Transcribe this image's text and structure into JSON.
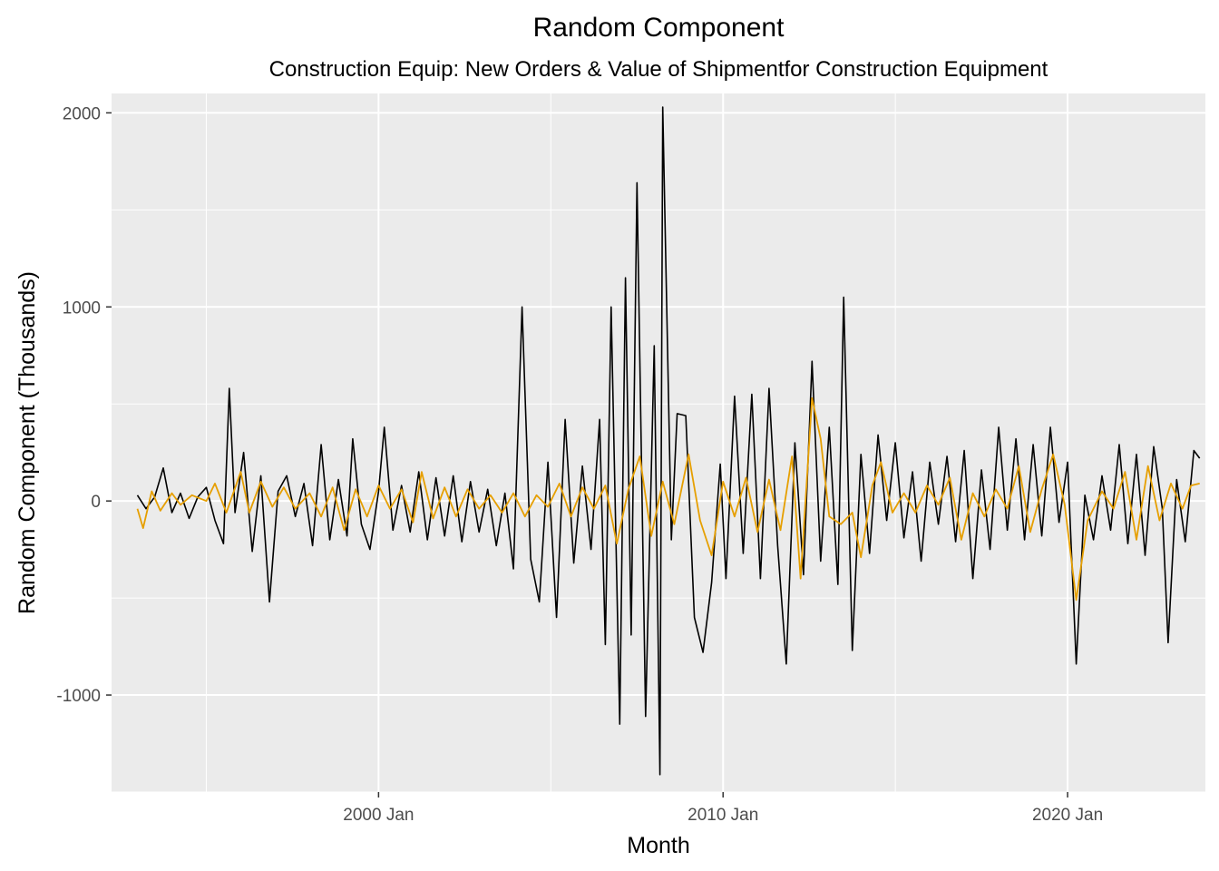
{
  "chart_data": {
    "type": "line",
    "title": "Random Component",
    "subtitle": "Construction Equip: New Orders & Value of Shipmentfor Construction Equipment",
    "xlabel": "Month",
    "ylabel": "Random Component (Thousands)",
    "x_range": [
      "1992-04",
      "2024-01"
    ],
    "ylim": [
      -1500,
      2100
    ],
    "y_ticks": [
      -1000,
      0,
      1000,
      2000
    ],
    "y_tick_labels": [
      "-1000",
      "0",
      "1000",
      "2000"
    ],
    "x_ticks": [
      "2000-01",
      "2010-01",
      "2020-01"
    ],
    "x_tick_labels": [
      "2000 Jan",
      "2010 Jan",
      "2020 Jan"
    ],
    "grid": true,
    "background": "#ebebeb",
    "series": [
      {
        "color": "#000000",
        "points": [
          [
            "1993-01",
            30
          ],
          [
            "1993-04",
            -40
          ],
          [
            "1993-07",
            20
          ],
          [
            "1993-10",
            170
          ],
          [
            "1994-01",
            -60
          ],
          [
            "1994-04",
            40
          ],
          [
            "1994-07",
            -90
          ],
          [
            "1994-10",
            20
          ],
          [
            "1995-01",
            70
          ],
          [
            "1995-04",
            -100
          ],
          [
            "1995-07",
            -220
          ],
          [
            "1995-09",
            580
          ],
          [
            "1995-11",
            -60
          ],
          [
            "1996-02",
            250
          ],
          [
            "1996-05",
            -260
          ],
          [
            "1996-08",
            130
          ],
          [
            "1996-11",
            -520
          ],
          [
            "1997-02",
            50
          ],
          [
            "1997-05",
            130
          ],
          [
            "1997-08",
            -80
          ],
          [
            "1997-11",
            90
          ],
          [
            "1998-02",
            -230
          ],
          [
            "1998-05",
            290
          ],
          [
            "1998-08",
            -200
          ],
          [
            "1998-11",
            110
          ],
          [
            "1999-02",
            -180
          ],
          [
            "1999-04",
            320
          ],
          [
            "1999-07",
            -120
          ],
          [
            "1999-10",
            -250
          ],
          [
            "2000-01",
            50
          ],
          [
            "2000-03",
            380
          ],
          [
            "2000-06",
            -150
          ],
          [
            "2000-09",
            80
          ],
          [
            "2000-12",
            -160
          ],
          [
            "2001-03",
            150
          ],
          [
            "2001-06",
            -200
          ],
          [
            "2001-09",
            120
          ],
          [
            "2001-12",
            -180
          ],
          [
            "2002-03",
            130
          ],
          [
            "2002-06",
            -210
          ],
          [
            "2002-09",
            100
          ],
          [
            "2002-12",
            -160
          ],
          [
            "2003-03",
            60
          ],
          [
            "2003-06",
            -230
          ],
          [
            "2003-09",
            40
          ],
          [
            "2003-12",
            -350
          ],
          [
            "2004-03",
            1000
          ],
          [
            "2004-06",
            -300
          ],
          [
            "2004-09",
            -520
          ],
          [
            "2004-12",
            200
          ],
          [
            "2005-03",
            -600
          ],
          [
            "2005-06",
            420
          ],
          [
            "2005-09",
            -320
          ],
          [
            "2005-12",
            180
          ],
          [
            "2006-03",
            -250
          ],
          [
            "2006-06",
            420
          ],
          [
            "2006-08",
            -740
          ],
          [
            "2006-10",
            1000
          ],
          [
            "2007-01",
            -1150
          ],
          [
            "2007-03",
            1150
          ],
          [
            "2007-05",
            -690
          ],
          [
            "2007-07",
            1640
          ],
          [
            "2007-10",
            -1110
          ],
          [
            "2008-01",
            800
          ],
          [
            "2008-03",
            -1410
          ],
          [
            "2008-04",
            2030
          ],
          [
            "2008-07",
            -200
          ],
          [
            "2008-09",
            450
          ],
          [
            "2008-12",
            440
          ],
          [
            "2009-03",
            -600
          ],
          [
            "2009-06",
            -780
          ],
          [
            "2009-09",
            -420
          ],
          [
            "2009-12",
            190
          ],
          [
            "2010-02",
            -400
          ],
          [
            "2010-05",
            540
          ],
          [
            "2010-08",
            -270
          ],
          [
            "2010-11",
            550
          ],
          [
            "2011-02",
            -400
          ],
          [
            "2011-05",
            580
          ],
          [
            "2011-08",
            -230
          ],
          [
            "2011-11",
            -840
          ],
          [
            "2012-02",
            300
          ],
          [
            "2012-05",
            -380
          ],
          [
            "2012-08",
            720
          ],
          [
            "2012-11",
            -310
          ],
          [
            "2013-02",
            380
          ],
          [
            "2013-05",
            -430
          ],
          [
            "2013-07",
            1050
          ],
          [
            "2013-10",
            -770
          ],
          [
            "2014-01",
            240
          ],
          [
            "2014-04",
            -270
          ],
          [
            "2014-07",
            340
          ],
          [
            "2014-10",
            -100
          ],
          [
            "2015-01",
            300
          ],
          [
            "2015-04",
            -190
          ],
          [
            "2015-07",
            150
          ],
          [
            "2015-10",
            -310
          ],
          [
            "2016-01",
            200
          ],
          [
            "2016-04",
            -120
          ],
          [
            "2016-07",
            230
          ],
          [
            "2016-10",
            -210
          ],
          [
            "2017-01",
            260
          ],
          [
            "2017-04",
            -400
          ],
          [
            "2017-07",
            160
          ],
          [
            "2017-10",
            -250
          ],
          [
            "2018-01",
            380
          ],
          [
            "2018-04",
            -150
          ],
          [
            "2018-07",
            320
          ],
          [
            "2018-10",
            -200
          ],
          [
            "2019-01",
            290
          ],
          [
            "2019-04",
            -180
          ],
          [
            "2019-07",
            380
          ],
          [
            "2019-10",
            -110
          ],
          [
            "2020-01",
            200
          ],
          [
            "2020-04",
            -840
          ],
          [
            "2020-07",
            30
          ],
          [
            "2020-10",
            -200
          ],
          [
            "2021-01",
            130
          ],
          [
            "2021-04",
            -150
          ],
          [
            "2021-07",
            290
          ],
          [
            "2021-10",
            -220
          ],
          [
            "2022-01",
            240
          ],
          [
            "2022-04",
            -280
          ],
          [
            "2022-07",
            280
          ],
          [
            "2022-10",
            -40
          ],
          [
            "2022-12",
            -730
          ],
          [
            "2023-03",
            110
          ],
          [
            "2023-06",
            -210
          ],
          [
            "2023-09",
            260
          ],
          [
            "2023-11",
            220
          ]
        ]
      },
      {
        "color": "#e69f00",
        "points": [
          [
            "1993-01",
            -40
          ],
          [
            "1993-03",
            -140
          ],
          [
            "1993-06",
            50
          ],
          [
            "1993-09",
            -50
          ],
          [
            "1994-01",
            40
          ],
          [
            "1994-04",
            -20
          ],
          [
            "1994-08",
            30
          ],
          [
            "1995-01",
            0
          ],
          [
            "1995-04",
            90
          ],
          [
            "1995-08",
            -60
          ],
          [
            "1996-01",
            150
          ],
          [
            "1996-04",
            -60
          ],
          [
            "1996-08",
            100
          ],
          [
            "1996-12",
            -30
          ],
          [
            "1997-04",
            70
          ],
          [
            "1997-08",
            -40
          ],
          [
            "1998-01",
            40
          ],
          [
            "1998-05",
            -80
          ],
          [
            "1998-09",
            70
          ],
          [
            "1999-01",
            -150
          ],
          [
            "1999-05",
            60
          ],
          [
            "1999-09",
            -80
          ],
          [
            "2000-01",
            80
          ],
          [
            "2000-05",
            -40
          ],
          [
            "2000-09",
            60
          ],
          [
            "2001-01",
            -110
          ],
          [
            "2001-04",
            150
          ],
          [
            "2001-08",
            -90
          ],
          [
            "2001-12",
            70
          ],
          [
            "2002-04",
            -80
          ],
          [
            "2002-08",
            60
          ],
          [
            "2002-12",
            -40
          ],
          [
            "2003-04",
            30
          ],
          [
            "2003-08",
            -60
          ],
          [
            "2003-12",
            40
          ],
          [
            "2004-04",
            -80
          ],
          [
            "2004-08",
            30
          ],
          [
            "2004-12",
            -30
          ],
          [
            "2005-04",
            90
          ],
          [
            "2005-08",
            -80
          ],
          [
            "2005-12",
            70
          ],
          [
            "2006-04",
            -40
          ],
          [
            "2006-08",
            80
          ],
          [
            "2006-12",
            -220
          ],
          [
            "2007-04",
            60
          ],
          [
            "2007-08",
            230
          ],
          [
            "2007-12",
            -180
          ],
          [
            "2008-04",
            100
          ],
          [
            "2008-08",
            -120
          ],
          [
            "2009-01",
            240
          ],
          [
            "2009-05",
            -100
          ],
          [
            "2009-09",
            -280
          ],
          [
            "2010-01",
            100
          ],
          [
            "2010-05",
            -80
          ],
          [
            "2010-09",
            120
          ],
          [
            "2011-01",
            -160
          ],
          [
            "2011-05",
            110
          ],
          [
            "2011-09",
            -150
          ],
          [
            "2012-01",
            230
          ],
          [
            "2012-04",
            -400
          ],
          [
            "2012-08",
            530
          ],
          [
            "2012-11",
            320
          ],
          [
            "2013-02",
            -80
          ],
          [
            "2013-06",
            -120
          ],
          [
            "2013-10",
            -60
          ],
          [
            "2014-01",
            -290
          ],
          [
            "2014-05",
            80
          ],
          [
            "2014-08",
            200
          ],
          [
            "2014-12",
            -60
          ],
          [
            "2015-04",
            40
          ],
          [
            "2015-08",
            -60
          ],
          [
            "2015-12",
            80
          ],
          [
            "2016-04",
            -20
          ],
          [
            "2016-08",
            120
          ],
          [
            "2016-12",
            -200
          ],
          [
            "2017-04",
            40
          ],
          [
            "2017-08",
            -80
          ],
          [
            "2017-12",
            60
          ],
          [
            "2018-04",
            -40
          ],
          [
            "2018-08",
            180
          ],
          [
            "2018-12",
            -160
          ],
          [
            "2019-04",
            60
          ],
          [
            "2019-08",
            240
          ],
          [
            "2019-12",
            -20
          ],
          [
            "2020-04",
            -510
          ],
          [
            "2020-08",
            -100
          ],
          [
            "2021-01",
            50
          ],
          [
            "2021-05",
            -40
          ],
          [
            "2021-09",
            150
          ],
          [
            "2022-01",
            -200
          ],
          [
            "2022-05",
            180
          ],
          [
            "2022-09",
            -100
          ],
          [
            "2023-01",
            90
          ],
          [
            "2023-05",
            -40
          ],
          [
            "2023-08",
            80
          ],
          [
            "2023-11",
            90
          ]
        ]
      }
    ]
  }
}
